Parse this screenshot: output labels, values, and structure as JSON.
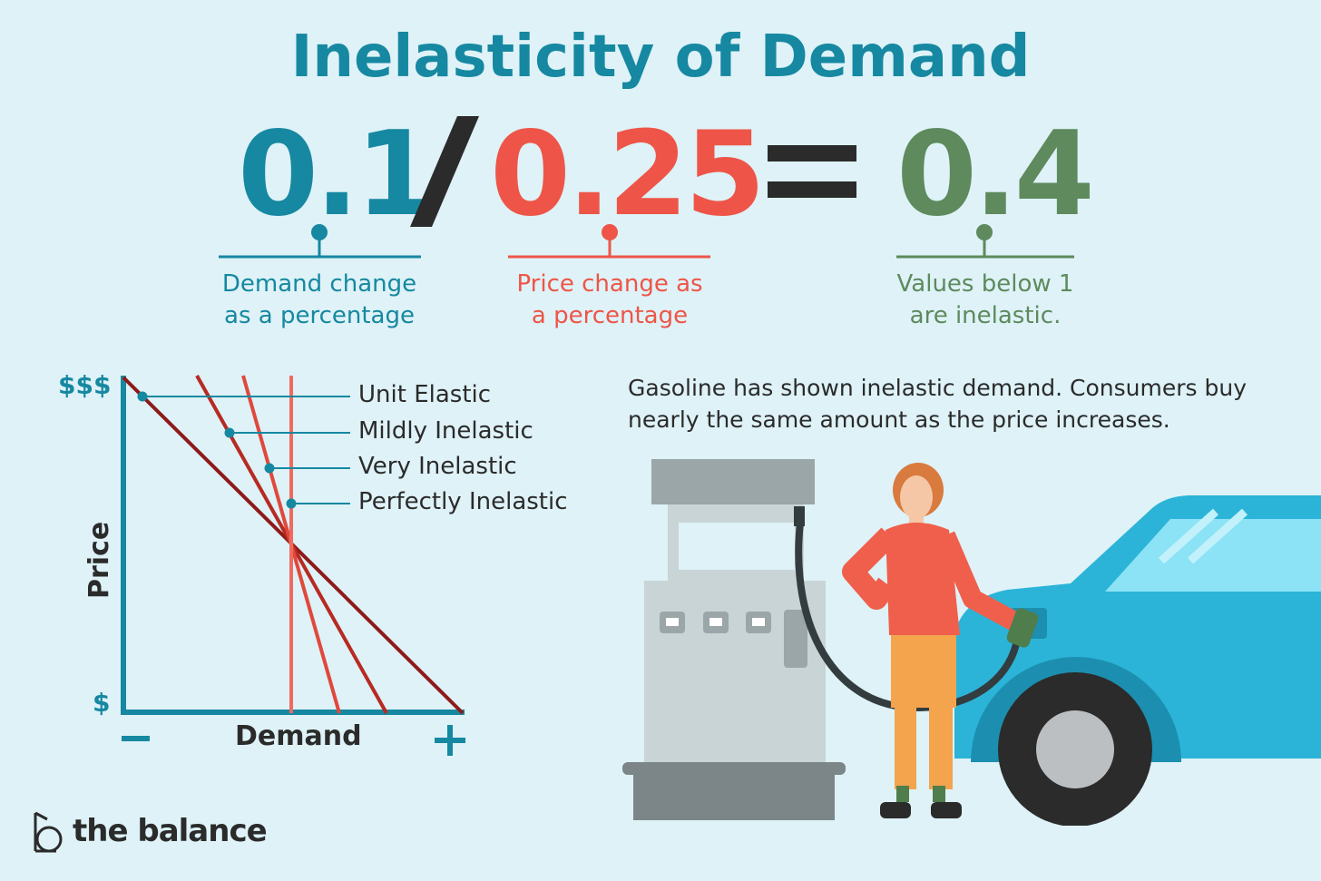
{
  "title": "Inelasticity of Demand",
  "formula": {
    "demand_value": "0.1",
    "divide": "/",
    "price_value": "0.25",
    "equals": "=",
    "result_value": "0.4",
    "demand_caption": [
      "Demand change",
      "as a percentage"
    ],
    "price_caption": [
      "Price change as",
      "a percentage"
    ],
    "result_caption": [
      "Values below 1",
      "are inelastic."
    ]
  },
  "chart_data": {
    "type": "line",
    "xlabel": "Demand",
    "ylabel": "Price",
    "x_min_label": "−",
    "x_max_label": "+",
    "y_max_label": "$$$",
    "y_min_label": "$",
    "series": [
      {
        "name": "Unit Elastic",
        "color": "#8e1a1a"
      },
      {
        "name": "Mildly Inelastic",
        "color": "#b72a22"
      },
      {
        "name": "Very Inelastic",
        "color": "#e0483c"
      },
      {
        "name": "Perfectly Inelastic",
        "color": "#f06b5f"
      }
    ]
  },
  "description": "Gasoline has shown inelastic demand. Consumers buy nearly the same amount as the price increases.",
  "brand": {
    "name": "the balance",
    "logo_icon": "balance-logo-icon"
  },
  "colors": {
    "teal": "#1688a1",
    "red": "#ee5548",
    "green": "#5e8a5d",
    "dark": "#2b2b2b"
  }
}
